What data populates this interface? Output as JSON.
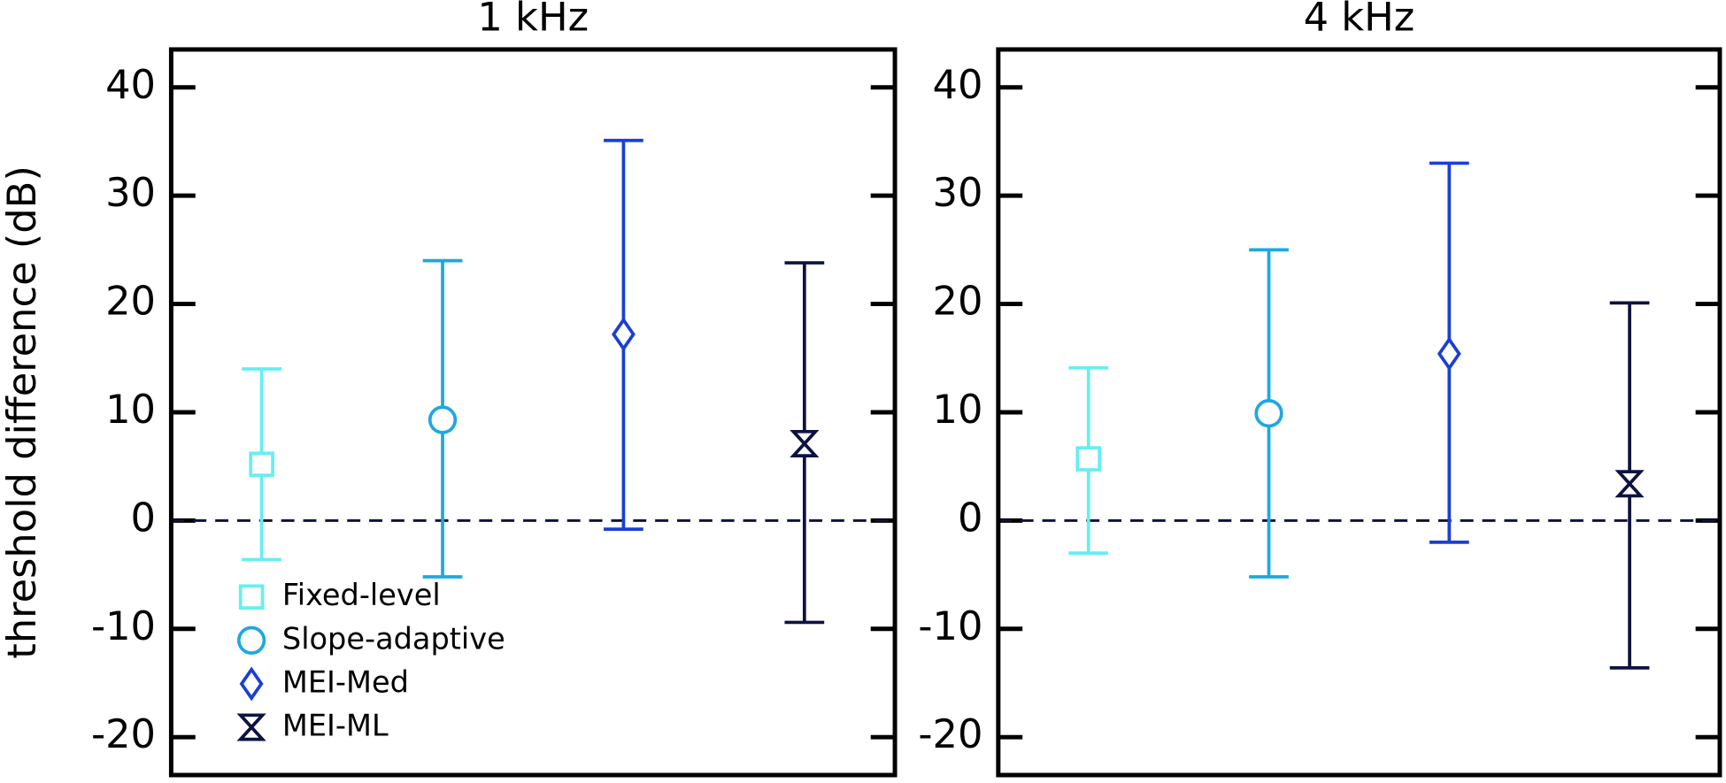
{
  "chart_data": [
    {
      "type": "errorbar",
      "title": "1 kHz",
      "ylabel": "threshold difference (dB)",
      "ylim": [
        -23.5,
        43.5
      ],
      "yticks": [
        -20,
        -10,
        0,
        10,
        20,
        30,
        40
      ],
      "hline": 0,
      "legend": "lower left",
      "series": [
        {
          "name": "Fixed-level",
          "color": "#66eef0",
          "marker": "square",
          "values": [
            5.2
          ],
          "lower": [
            -3.6
          ],
          "upper": [
            14.0
          ]
        },
        {
          "name": "Slope-adaptive",
          "color": "#1ea8e0",
          "marker": "circle",
          "values": [
            9.3
          ],
          "lower": [
            -5.2
          ],
          "upper": [
            24.0
          ]
        },
        {
          "name": "MEI-Med",
          "color": "#1a3fd6",
          "marker": "diamond",
          "values": [
            17.2
          ],
          "lower": [
            -0.8
          ],
          "upper": [
            35.1
          ]
        },
        {
          "name": "MEI-ML",
          "color": "#0d1240",
          "marker": "hourglass",
          "values": [
            7.1
          ],
          "lower": [
            -9.4
          ],
          "upper": [
            23.8
          ]
        }
      ]
    },
    {
      "type": "errorbar",
      "title": "4 kHz",
      "ylim": [
        -23.5,
        43.5
      ],
      "yticks": [
        -20,
        -10,
        0,
        10,
        20,
        30,
        40
      ],
      "hline": 0,
      "series": [
        {
          "color": "#66eef0",
          "marker": "square",
          "values": [
            5.7
          ],
          "lower": [
            -3.0
          ],
          "upper": [
            14.1
          ]
        },
        {
          "color": "#1ea8e0",
          "marker": "circle",
          "values": [
            9.9
          ],
          "lower": [
            -5.2
          ],
          "upper": [
            25.0
          ]
        },
        {
          "color": "#1a3fd6",
          "marker": "diamond",
          "values": [
            15.4
          ],
          "lower": [
            -2.0
          ],
          "upper": [
            33.0
          ]
        },
        {
          "color": "#0d1240",
          "marker": "hourglass",
          "values": [
            3.4
          ],
          "lower": [
            -13.6
          ],
          "upper": [
            20.1
          ]
        }
      ]
    }
  ]
}
